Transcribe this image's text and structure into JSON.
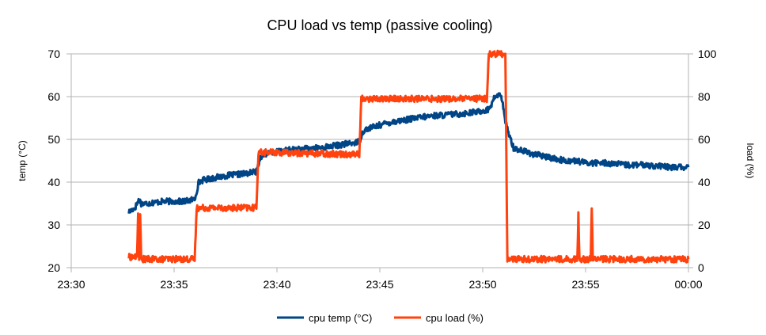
{
  "chart_data": {
    "type": "line",
    "title": "CPU load vs temp (passive cooling)",
    "xlabel": "",
    "x_ticks": [
      "23:30",
      "23:35",
      "23:40",
      "23:45",
      "23:50",
      "23:55",
      "00:00"
    ],
    "xlim_minutes": [
      0,
      30
    ],
    "y_left": {
      "label": "temp (°C)",
      "ylim": [
        20,
        70
      ],
      "ticks": [
        20,
        30,
        40,
        50,
        60,
        70
      ]
    },
    "y_right": {
      "label": "load (%)",
      "ylim": [
        0,
        100
      ],
      "ticks": [
        0,
        20,
        40,
        60,
        80,
        100
      ]
    },
    "grid": "horizontal",
    "legend": "bottom",
    "series": [
      {
        "name": "cpu temp (°C)",
        "axis": "left",
        "color": "#004586",
        "minutes": [
          2.8,
          3.1,
          3.3,
          3.4,
          3.6,
          4.5,
          5.5,
          6.0,
          6.2,
          6.4,
          7.5,
          8.5,
          9.0,
          9.2,
          9.4,
          10.5,
          12.0,
          13.5,
          14.0,
          14.2,
          14.4,
          15.5,
          17.5,
          19.0,
          19.8,
          20.3,
          20.6,
          20.9,
          21.1,
          21.5,
          22.5,
          23.0,
          23.5,
          24.0,
          24.5,
          25.0,
          26.0,
          27.0,
          28.0,
          29.0,
          30.0
        ],
        "values": [
          33,
          34,
          36,
          35,
          35,
          35.5,
          35.5,
          36,
          40,
          40.5,
          41.5,
          42,
          42.5,
          46,
          46.5,
          47.5,
          48,
          49,
          49.5,
          52,
          52.5,
          54,
          55.5,
          56,
          56.5,
          57,
          60,
          60.5,
          54,
          48,
          46.5,
          46,
          45.5,
          45,
          45,
          44.5,
          44.5,
          44,
          44,
          43.5,
          43.5
        ],
        "noise": 0.7
      },
      {
        "name": "cpu load (%)",
        "axis": "right",
        "color": "#ff420e",
        "minutes": [
          2.8,
          3.2,
          3.25,
          3.3,
          3.35,
          3.4,
          6.0,
          6.1,
          9.0,
          9.1,
          14.0,
          14.1,
          19.0,
          19.1,
          20.2,
          20.3,
          21.1,
          21.2,
          24.6,
          24.65,
          24.7,
          25.25,
          25.3,
          25.35,
          30.0
        ],
        "values": [
          5,
          5,
          25,
          5,
          25,
          4,
          4,
          28,
          28,
          54,
          53,
          79,
          79,
          79,
          79,
          100,
          100,
          4,
          4,
          25,
          4,
          4,
          29,
          4,
          4
        ],
        "noise": 1.5
      }
    ]
  }
}
